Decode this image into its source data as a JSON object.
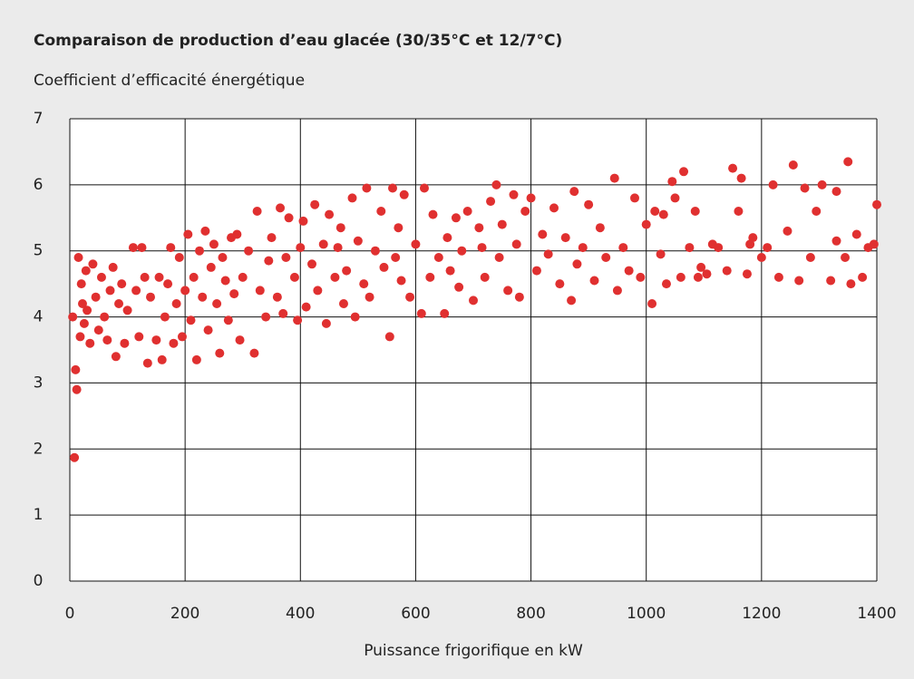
{
  "chart_data": {
    "type": "scatter",
    "title": "Comparaison de production d’eau glacée (30/35°C et 12/7°C)",
    "ylabel": "Coefficient d’efficacité énergétique",
    "xlabel": "Puissance frigorifique en kW",
    "xlim": [
      0,
      1400
    ],
    "xticks": [
      0,
      200,
      400,
      600,
      800,
      1000,
      1200,
      1400
    ],
    "ylim": [
      0,
      7
    ],
    "yticks": [
      0,
      1,
      2,
      3,
      4,
      5,
      6,
      7
    ],
    "grid": true,
    "x": [
      8,
      5,
      10,
      12,
      15,
      18,
      20,
      22,
      25,
      28,
      30,
      35,
      40,
      45,
      50,
      55,
      60,
      65,
      70,
      75,
      80,
      85,
      90,
      95,
      100,
      110,
      115,
      120,
      125,
      130,
      135,
      140,
      150,
      155,
      160,
      165,
      170,
      175,
      180,
      185,
      190,
      195,
      200,
      205,
      210,
      215,
      220,
      225,
      230,
      235,
      240,
      245,
      250,
      255,
      260,
      265,
      270,
      275,
      280,
      285,
      290,
      295,
      300,
      310,
      320,
      325,
      330,
      340,
      345,
      350,
      360,
      365,
      370,
      375,
      380,
      390,
      395,
      400,
      405,
      410,
      420,
      425,
      430,
      440,
      445,
      450,
      460,
      465,
      470,
      475,
      480,
      490,
      495,
      500,
      510,
      515,
      520,
      530,
      540,
      545,
      555,
      560,
      565,
      570,
      575,
      580,
      590,
      600,
      610,
      615,
      625,
      630,
      640,
      650,
      655,
      660,
      670,
      675,
      680,
      690,
      700,
      710,
      715,
      720,
      730,
      740,
      745,
      750,
      760,
      770,
      775,
      780,
      790,
      800,
      810,
      820,
      830,
      840,
      850,
      860,
      870,
      875,
      880,
      890,
      900,
      910,
      920,
      930,
      945,
      950,
      960,
      970,
      980,
      990,
      1000,
      1010,
      1015,
      1025,
      1035,
      1045,
      1050,
      1060,
      1065,
      1075,
      1085,
      1095,
      1105,
      1115,
      1125,
      1140,
      1150,
      1160,
      1165,
      1175,
      1185,
      1200,
      1210,
      1220,
      1230,
      1245,
      1255,
      1265,
      1275,
      1285,
      1295,
      1305,
      1320,
      1330,
      1345,
      1350,
      1355,
      1365,
      1375,
      1385,
      1395,
      1400,
      1330,
      1180,
      1090,
      1030
    ],
    "series": [
      {
        "color": "#e03030",
        "values": [
          1.87,
          4.0,
          3.2,
          2.9,
          4.9,
          3.7,
          4.5,
          4.2,
          3.9,
          4.7,
          4.1,
          3.6,
          4.8,
          4.3,
          3.8,
          4.6,
          4.0,
          3.65,
          4.4,
          4.75,
          3.4,
          4.2,
          4.5,
          3.6,
          4.1,
          5.05,
          4.4,
          3.7,
          5.05,
          4.6,
          3.3,
          4.3,
          3.65,
          4.6,
          3.35,
          4.0,
          4.5,
          5.05,
          3.6,
          4.2,
          4.9,
          3.7,
          4.4,
          5.25,
          3.95,
          4.6,
          3.35,
          5.0,
          4.3,
          5.3,
          3.8,
          4.75,
          5.1,
          4.2,
          3.45,
          4.9,
          4.55,
          3.95,
          5.2,
          4.35,
          5.25,
          3.65,
          4.6,
          5.0,
          3.45,
          5.6,
          4.4,
          4.0,
          4.85,
          5.2,
          4.3,
          5.65,
          4.05,
          4.9,
          5.5,
          4.6,
          3.95,
          5.05,
          5.45,
          4.15,
          4.8,
          5.7,
          4.4,
          5.1,
          3.9,
          5.55,
          4.6,
          5.05,
          5.35,
          4.2,
          4.7,
          5.8,
          4.0,
          5.15,
          4.5,
          5.95,
          4.3,
          5.0,
          5.6,
          4.75,
          3.7,
          5.95,
          4.9,
          5.35,
          4.55,
          5.85,
          4.3,
          5.1,
          4.05,
          5.95,
          4.6,
          5.55,
          4.9,
          4.05,
          5.2,
          4.7,
          5.5,
          4.45,
          5.0,
          5.6,
          4.25,
          5.35,
          5.05,
          4.6,
          5.75,
          6.0,
          4.9,
          5.4,
          4.4,
          5.85,
          5.1,
          4.3,
          5.6,
          5.8,
          4.7,
          5.25,
          4.95,
          5.65,
          4.5,
          5.2,
          4.25,
          5.9,
          4.8,
          5.05,
          5.7,
          4.55,
          5.35,
          4.9,
          6.1,
          4.4,
          5.05,
          4.7,
          5.8,
          4.6,
          5.4,
          4.2,
          5.6,
          4.95,
          4.5,
          6.05,
          5.8,
          4.6,
          6.2,
          5.05,
          5.6,
          4.75,
          4.65,
          5.1,
          5.05,
          4.7,
          6.25,
          5.6,
          6.1,
          4.65,
          5.2,
          4.9,
          5.05,
          6.0,
          4.6,
          5.3,
          6.3,
          4.55,
          5.95,
          4.9,
          5.6,
          6.0,
          4.55,
          5.15,
          4.9,
          6.35,
          4.5,
          5.25,
          4.6,
          5.05,
          5.1,
          5.7,
          5.9,
          5.1,
          4.6,
          5.55
        ]
      }
    ]
  }
}
